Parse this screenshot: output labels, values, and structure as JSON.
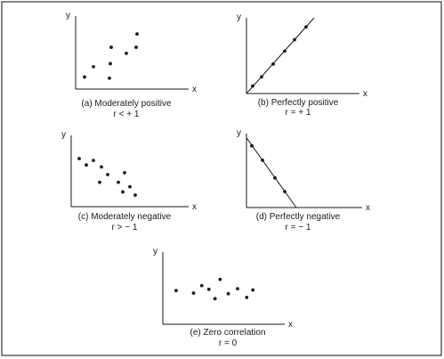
{
  "chart_data": [
    {
      "type": "scatter",
      "title": "(a) Moderately positive",
      "subtitle": "r < + 1",
      "xlabel": "x",
      "ylabel": "y",
      "xlim": [
        0,
        10
      ],
      "ylim": [
        0,
        10
      ],
      "points": [
        {
          "x": 1.0,
          "y": 2.0
        },
        {
          "x": 2.0,
          "y": 3.7
        },
        {
          "x": 3.8,
          "y": 1.8
        },
        {
          "x": 3.9,
          "y": 4.2
        },
        {
          "x": 4.0,
          "y": 6.9
        },
        {
          "x": 5.7,
          "y": 5.9
        },
        {
          "x": 6.8,
          "y": 6.9
        },
        {
          "x": 6.9,
          "y": 9.1
        }
      ]
    },
    {
      "type": "scatter",
      "title": "(b) Perfectly positive",
      "subtitle": "r = + 1",
      "xlabel": "x",
      "ylabel": "y",
      "xlim": [
        0,
        10
      ],
      "ylim": [
        0,
        10
      ],
      "fit_line": [
        [
          0,
          0
        ],
        [
          7.6,
          10
        ]
      ],
      "points": [
        {
          "x": 0.7,
          "y": 1.0
        },
        {
          "x": 1.7,
          "y": 2.2
        },
        {
          "x": 3.0,
          "y": 3.9
        },
        {
          "x": 4.3,
          "y": 5.6
        },
        {
          "x": 5.4,
          "y": 7.1
        },
        {
          "x": 6.7,
          "y": 8.8
        }
      ]
    },
    {
      "type": "scatter",
      "title": "(c) Moderately negative",
      "subtitle": "r > − 1",
      "xlabel": "x",
      "ylabel": "y",
      "xlim": [
        0,
        10
      ],
      "ylim": [
        0,
        10
      ],
      "points": [
        {
          "x": 0.9,
          "y": 7.5
        },
        {
          "x": 1.7,
          "y": 6.5
        },
        {
          "x": 2.5,
          "y": 7.2
        },
        {
          "x": 3.4,
          "y": 6.2
        },
        {
          "x": 3.2,
          "y": 3.8
        },
        {
          "x": 4.1,
          "y": 5.0
        },
        {
          "x": 5.3,
          "y": 3.8
        },
        {
          "x": 6.0,
          "y": 5.3
        },
        {
          "x": 5.8,
          "y": 2.3
        },
        {
          "x": 6.6,
          "y": 3.1
        },
        {
          "x": 7.2,
          "y": 1.8
        }
      ]
    },
    {
      "type": "scatter",
      "title": "(d) Perfectly negative",
      "subtitle": "r = − 1",
      "xlabel": "x",
      "ylabel": "y",
      "xlim": [
        0,
        10
      ],
      "ylim": [
        0,
        10
      ],
      "fit_line": [
        [
          0,
          8.7
        ],
        [
          5.6,
          0
        ]
      ],
      "points": [
        {
          "x": 0.6,
          "y": 7.7
        },
        {
          "x": 1.8,
          "y": 5.9
        },
        {
          "x": 3.2,
          "y": 3.7
        },
        {
          "x": 4.3,
          "y": 2.0
        }
      ]
    },
    {
      "type": "scatter",
      "title": "(e) Zero correlation",
      "subtitle": "r = 0",
      "xlabel": "x",
      "ylabel": "y",
      "xlim": [
        0,
        10
      ],
      "ylim": [
        0,
        10
      ],
      "points": [
        {
          "x": 1.3,
          "y": 5.4
        },
        {
          "x": 3.0,
          "y": 5.0
        },
        {
          "x": 3.8,
          "y": 6.2
        },
        {
          "x": 4.5,
          "y": 5.6
        },
        {
          "x": 5.1,
          "y": 4.1
        },
        {
          "x": 5.6,
          "y": 7.2
        },
        {
          "x": 6.4,
          "y": 4.9
        },
        {
          "x": 7.3,
          "y": 5.7
        },
        {
          "x": 8.2,
          "y": 4.3
        },
        {
          "x": 8.8,
          "y": 5.5
        }
      ]
    }
  ]
}
